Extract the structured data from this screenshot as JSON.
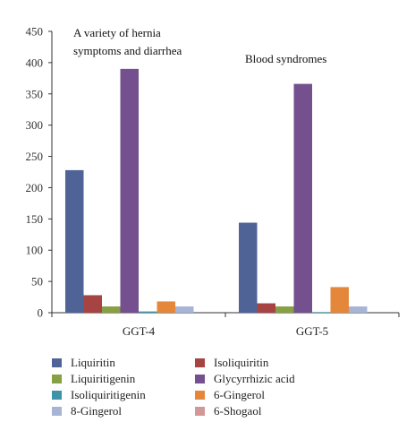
{
  "chart_data": {
    "type": "bar",
    "categories": [
      "GGT-4",
      "GGT-5"
    ],
    "ylim": [
      0,
      450
    ],
    "yticks": [
      0,
      50,
      100,
      150,
      200,
      250,
      300,
      350,
      400,
      450
    ],
    "grid": false,
    "legend_position": "bottom",
    "annotations": [
      {
        "category": "GGT-4",
        "lines": [
          "A variety of hernia",
          "symptoms and diarrhea"
        ]
      },
      {
        "category": "GGT-5",
        "lines": [
          "Blood syndromes"
        ]
      }
    ],
    "series": [
      {
        "name": "Liquiritin",
        "color": "#4f6397",
        "values": [
          228,
          144
        ]
      },
      {
        "name": "Isoliquiritin",
        "color": "#a54442",
        "values": [
          28,
          15
        ]
      },
      {
        "name": "Liquiritigenin",
        "color": "#86a043",
        "values": [
          10,
          10
        ]
      },
      {
        "name": "Glycyrrhizic acid",
        "color": "#74518e",
        "values": [
          390,
          366
        ]
      },
      {
        "name": "Isoliquiritigenin",
        "color": "#3f93a8",
        "values": [
          2,
          1
        ]
      },
      {
        "name": "6-Gingerol",
        "color": "#e5873b",
        "values": [
          18,
          41
        ]
      },
      {
        "name": "8-Gingerol",
        "color": "#a8b4d6",
        "values": [
          10,
          10
        ]
      },
      {
        "name": "6-Shogaol",
        "color": "#d49797",
        "values": [
          0,
          0
        ]
      }
    ]
  }
}
